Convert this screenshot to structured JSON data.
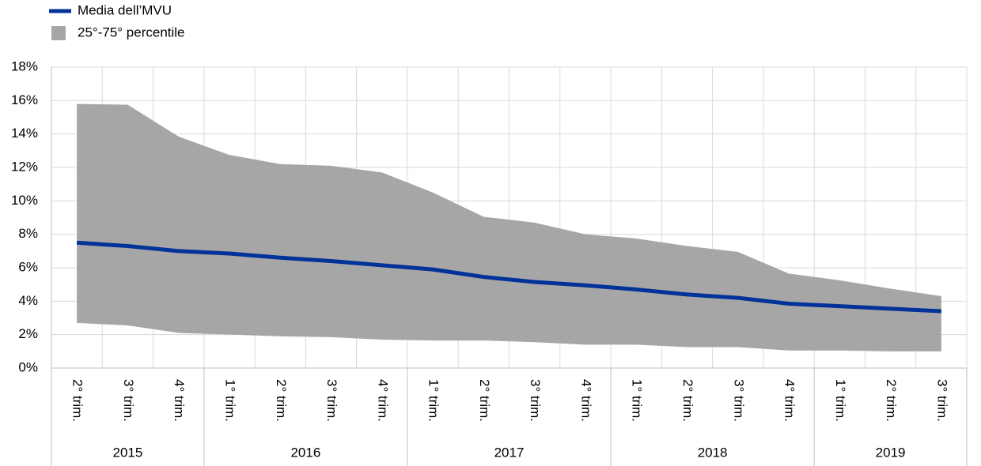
{
  "chart_data": {
    "type": "line",
    "category_groups": [
      {
        "name": "2015",
        "categories": [
          "2° trim.",
          "3° trim.",
          "4° trim."
        ]
      },
      {
        "name": "2016",
        "categories": [
          "1° trim.",
          "2° trim.",
          "3° trim.",
          "4° trim."
        ]
      },
      {
        "name": "2017",
        "categories": [
          "1° trim.",
          "2° trim.",
          "3° trim.",
          "4° trim."
        ]
      },
      {
        "name": "2018",
        "categories": [
          "1° trim.",
          "2° trim.",
          "3° trim.",
          "4° trim."
        ]
      },
      {
        "name": "2019",
        "categories": [
          "1° trim.",
          "2° trim.",
          "3° trim."
        ]
      }
    ],
    "series": [
      {
        "name": "Media dell’MVU",
        "color": "#003299",
        "values": [
          7.5,
          7.3,
          7.0,
          6.85,
          6.6,
          6.4,
          6.15,
          5.9,
          5.45,
          5.15,
          4.95,
          4.7,
          4.4,
          4.2,
          3.85,
          3.7,
          3.55,
          3.4
        ]
      },
      {
        "name": "25°-75° percentile",
        "color": "#a6a6a6",
        "upper": [
          15.8,
          15.75,
          13.85,
          12.75,
          12.2,
          12.1,
          11.7,
          10.5,
          9.05,
          8.7,
          8.0,
          7.75,
          7.3,
          6.95,
          5.65,
          5.25,
          4.75,
          4.3
        ],
        "lower": [
          2.7,
          2.55,
          2.1,
          2.0,
          1.9,
          1.85,
          1.7,
          1.65,
          1.65,
          1.55,
          1.4,
          1.4,
          1.25,
          1.25,
          1.05,
          1.05,
          1.0,
          1.0
        ]
      }
    ],
    "ylim": [
      0,
      18
    ],
    "yticks": [
      {
        "value": 0,
        "label": "0%"
      },
      {
        "value": 2,
        "label": "2%"
      },
      {
        "value": 4,
        "label": "4%"
      },
      {
        "value": 6,
        "label": "6%"
      },
      {
        "value": 8,
        "label": "8%"
      },
      {
        "value": 10,
        "label": "10%"
      },
      {
        "value": 12,
        "label": "12%"
      },
      {
        "value": 14,
        "label": "14%"
      },
      {
        "value": 16,
        "label": "16%"
      },
      {
        "value": 18,
        "label": "18%"
      }
    ],
    "grid": true
  }
}
